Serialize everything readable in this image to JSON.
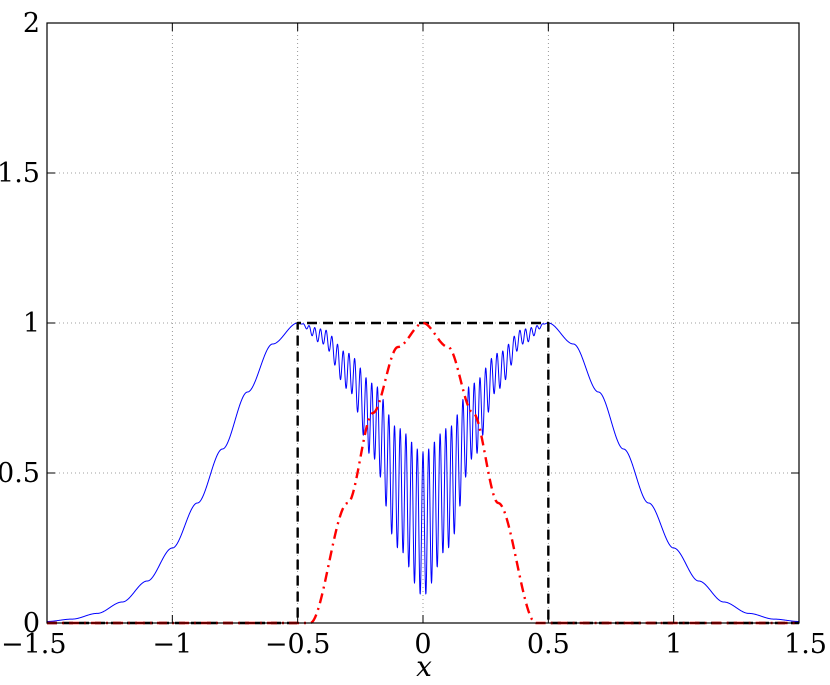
{
  "chart_data": {
    "type": "line",
    "title": "",
    "xlabel": "x",
    "ylabel": "",
    "xlim": [
      -1.5,
      1.5
    ],
    "ylim": [
      0,
      2
    ],
    "grid": true,
    "legend": "none",
    "x_ticks": [
      -1.5,
      -1,
      -0.5,
      0,
      0.5,
      1,
      1.5
    ],
    "x_tick_labels": [
      "−1.5",
      "−1",
      "−0.5",
      "0",
      "0.5",
      "1",
      "1.5"
    ],
    "y_ticks": [
      0,
      0.5,
      1,
      1.5,
      2
    ],
    "y_tick_labels": [
      "0",
      "0.5",
      "1",
      "1.5",
      "2"
    ],
    "series": [
      {
        "color": "#0000ff",
        "style": "solid",
        "description_points": {
          "x": [
            -1.5,
            -1.4,
            -1.3,
            -1.2,
            -1.1,
            -1.0,
            -0.9,
            -0.8,
            -0.7,
            -0.6,
            -0.5,
            -0.4,
            -0.3,
            -0.2,
            -0.1,
            0.0,
            0.1,
            0.2,
            0.3,
            0.4,
            0.5,
            0.6,
            0.7,
            0.8,
            0.9,
            1.0,
            1.1,
            1.2,
            1.3,
            1.4,
            1.5
          ],
          "y": [
            0.005,
            0.013,
            0.032,
            0.07,
            0.14,
            0.25,
            0.4,
            0.58,
            0.77,
            0.93,
            1.0,
            0.97,
            0.85,
            0.65,
            0.35,
            0.1,
            0.35,
            0.65,
            0.85,
            0.97,
            1.0,
            0.93,
            0.77,
            0.58,
            0.4,
            0.25,
            0.14,
            0.07,
            0.032,
            0.013,
            0.005
          ]
        },
        "oscillation_envelope": {
          "x": [
            -0.5,
            -0.4,
            -0.3,
            -0.2,
            -0.1,
            0.0,
            0.1,
            0.2,
            0.3,
            0.4,
            0.5
          ],
          "upper": [
            1.0,
            0.98,
            0.9,
            0.8,
            0.65,
            0.57,
            0.65,
            0.8,
            0.9,
            0.98,
            1.0
          ],
          "lower": [
            1.0,
            0.93,
            0.78,
            0.55,
            0.25,
            0.09,
            0.25,
            0.55,
            0.78,
            0.93,
            1.0
          ]
        }
      },
      {
        "color": "#000000",
        "style": "dashed",
        "x": [
          -1.5,
          -0.5,
          -0.5,
          0.5,
          0.5,
          1.5
        ],
        "y": [
          0,
          0,
          1,
          1,
          0,
          0
        ]
      },
      {
        "color": "#ff0000",
        "style": "dash-dot",
        "x": [
          -1.5,
          -0.45,
          -0.3,
          -0.2,
          -0.1,
          0.0,
          0.1,
          0.2,
          0.3,
          0.45,
          1.5
        ],
        "y": [
          0,
          0,
          0.4,
          0.7,
          0.92,
          1.0,
          0.92,
          0.7,
          0.4,
          0,
          0
        ]
      }
    ]
  }
}
